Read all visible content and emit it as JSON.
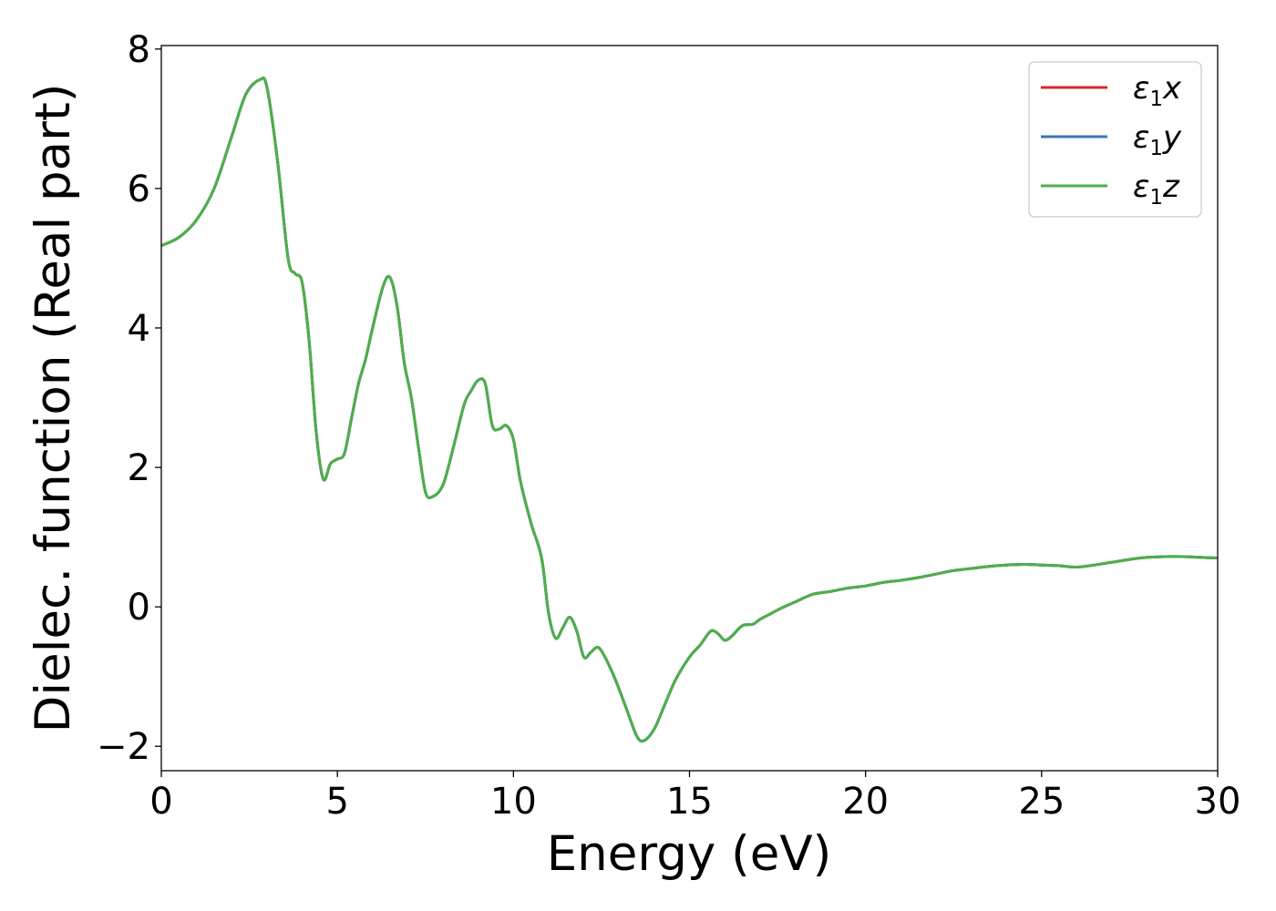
{
  "chart_data": {
    "type": "line",
    "xlabel": "Energy (eV)",
    "ylabel": "Dielec. function (Real part)",
    "xlim": [
      0,
      30
    ],
    "ylim": [
      -2.35,
      8.05
    ],
    "xticks": [
      0,
      5,
      10,
      15,
      20,
      25,
      30
    ],
    "yticks": [
      -2,
      0,
      2,
      4,
      6,
      8
    ],
    "xtick_labels": [
      "0",
      "5",
      "10",
      "15",
      "20",
      "25",
      "30"
    ],
    "ytick_labels": [
      "−2",
      "0",
      "2",
      "4",
      "6",
      "8"
    ],
    "grid": false,
    "legend_position": "top-right",
    "x": [
      0,
      0.5,
      1.0,
      1.5,
      2.0,
      2.4,
      2.8,
      3.0,
      3.3,
      3.6,
      3.8,
      4.0,
      4.2,
      4.4,
      4.6,
      4.8,
      5.0,
      5.2,
      5.4,
      5.6,
      5.8,
      6.0,
      6.3,
      6.5,
      6.7,
      6.9,
      7.1,
      7.3,
      7.5,
      7.7,
      8.0,
      8.3,
      8.6,
      8.8,
      9.0,
      9.2,
      9.4,
      9.6,
      9.8,
      10.0,
      10.2,
      10.5,
      10.8,
      11.0,
      11.2,
      11.4,
      11.6,
      11.8,
      12.0,
      12.2,
      12.4,
      12.6,
      12.9,
      13.2,
      13.5,
      13.7,
      14.0,
      14.3,
      14.6,
      15.0,
      15.3,
      15.6,
      15.8,
      16.0,
      16.2,
      16.5,
      16.8,
      17.0,
      17.3,
      17.6,
      18.0,
      18.5,
      19.0,
      19.5,
      20.0,
      20.5,
      21.0,
      21.5,
      22.0,
      22.5,
      23.0,
      23.5,
      24.0,
      24.5,
      25.0,
      25.5,
      26.0,
      26.5,
      27.0,
      27.5,
      28.0,
      28.5,
      29.0,
      29.5,
      30.0
    ],
    "series": [
      {
        "name": "x",
        "color": "#d62728",
        "values": [
          5.18,
          5.3,
          5.55,
          6.0,
          6.75,
          7.35,
          7.56,
          7.45,
          6.4,
          5.0,
          4.78,
          4.65,
          3.8,
          2.5,
          1.83,
          2.05,
          2.12,
          2.2,
          2.7,
          3.2,
          3.55,
          4.0,
          4.6,
          4.72,
          4.3,
          3.5,
          3.0,
          2.3,
          1.65,
          1.58,
          1.75,
          2.3,
          2.9,
          3.1,
          3.25,
          3.2,
          2.6,
          2.55,
          2.6,
          2.4,
          1.8,
          1.2,
          0.7,
          -0.1,
          -0.45,
          -0.3,
          -0.15,
          -0.35,
          -0.72,
          -0.65,
          -0.58,
          -0.72,
          -1.05,
          -1.45,
          -1.85,
          -1.92,
          -1.75,
          -1.4,
          -1.05,
          -0.72,
          -0.55,
          -0.35,
          -0.38,
          -0.48,
          -0.42,
          -0.27,
          -0.25,
          -0.18,
          -0.1,
          -0.02,
          0.07,
          0.18,
          0.22,
          0.27,
          0.3,
          0.35,
          0.38,
          0.42,
          0.47,
          0.52,
          0.55,
          0.58,
          0.6,
          0.61,
          0.6,
          0.59,
          0.57,
          0.6,
          0.64,
          0.68,
          0.71,
          0.72,
          0.72,
          0.71,
          0.7
        ]
      },
      {
        "name": "y",
        "color": "#3a78b0",
        "values": [
          5.18,
          5.3,
          5.55,
          6.0,
          6.75,
          7.35,
          7.56,
          7.45,
          6.4,
          5.0,
          4.78,
          4.65,
          3.8,
          2.5,
          1.83,
          2.05,
          2.12,
          2.2,
          2.7,
          3.2,
          3.55,
          4.0,
          4.6,
          4.72,
          4.3,
          3.5,
          3.0,
          2.3,
          1.65,
          1.58,
          1.75,
          2.3,
          2.9,
          3.1,
          3.25,
          3.2,
          2.6,
          2.55,
          2.6,
          2.4,
          1.8,
          1.2,
          0.7,
          -0.1,
          -0.45,
          -0.3,
          -0.15,
          -0.35,
          -0.72,
          -0.65,
          -0.58,
          -0.72,
          -1.05,
          -1.45,
          -1.85,
          -1.92,
          -1.75,
          -1.4,
          -1.05,
          -0.72,
          -0.55,
          -0.35,
          -0.38,
          -0.48,
          -0.42,
          -0.27,
          -0.25,
          -0.18,
          -0.1,
          -0.02,
          0.07,
          0.18,
          0.22,
          0.27,
          0.3,
          0.35,
          0.38,
          0.42,
          0.47,
          0.52,
          0.55,
          0.58,
          0.6,
          0.61,
          0.6,
          0.59,
          0.57,
          0.6,
          0.64,
          0.68,
          0.71,
          0.72,
          0.72,
          0.71,
          0.7
        ]
      },
      {
        "name": "z",
        "color": "#4daf4a",
        "values": [
          5.18,
          5.3,
          5.55,
          6.0,
          6.75,
          7.35,
          7.56,
          7.45,
          6.4,
          5.0,
          4.78,
          4.65,
          3.8,
          2.5,
          1.83,
          2.05,
          2.12,
          2.2,
          2.7,
          3.2,
          3.55,
          4.0,
          4.6,
          4.72,
          4.3,
          3.5,
          3.0,
          2.3,
          1.65,
          1.58,
          1.75,
          2.3,
          2.9,
          3.1,
          3.25,
          3.2,
          2.6,
          2.55,
          2.6,
          2.4,
          1.8,
          1.2,
          0.7,
          -0.1,
          -0.45,
          -0.3,
          -0.15,
          -0.35,
          -0.72,
          -0.65,
          -0.58,
          -0.72,
          -1.05,
          -1.45,
          -1.85,
          -1.92,
          -1.75,
          -1.4,
          -1.05,
          -0.72,
          -0.55,
          -0.35,
          -0.38,
          -0.48,
          -0.42,
          -0.27,
          -0.25,
          -0.18,
          -0.1,
          -0.02,
          0.07,
          0.18,
          0.22,
          0.27,
          0.3,
          0.35,
          0.38,
          0.42,
          0.47,
          0.52,
          0.55,
          0.58,
          0.6,
          0.61,
          0.6,
          0.59,
          0.57,
          0.6,
          0.64,
          0.68,
          0.71,
          0.72,
          0.72,
          0.71,
          0.7
        ]
      }
    ],
    "legend": [
      {
        "symbol": "ε",
        "sub": "1",
        "suffix": "x"
      },
      {
        "symbol": "ε",
        "sub": "1",
        "suffix": "y"
      },
      {
        "symbol": "ε",
        "sub": "1",
        "suffix": "z"
      }
    ]
  }
}
